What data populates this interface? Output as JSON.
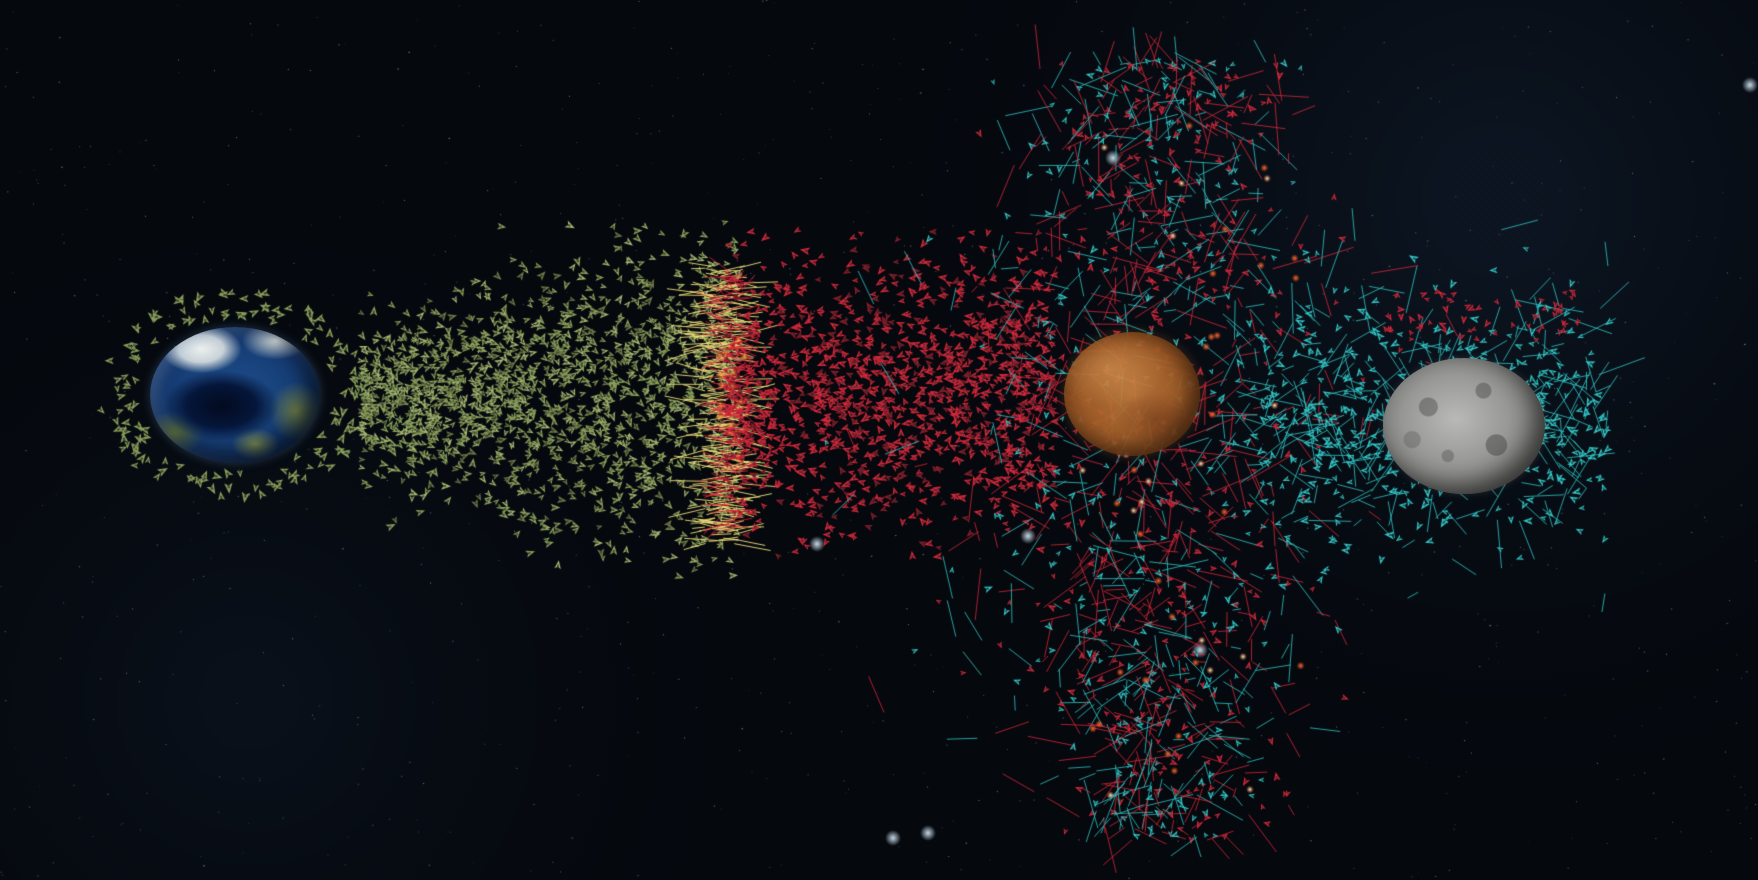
{
  "scene": {
    "type": "space-battle-simulation",
    "background_color": "#05080d",
    "planets": [
      {
        "id": "earth",
        "name": "earth",
        "colors": [
          "#1e4f8c",
          "#0f2a55",
          "#e8ecea",
          "#6d7c46"
        ]
      },
      {
        "id": "mars",
        "name": "mars",
        "colors": [
          "#c27a3c",
          "#7a4219"
        ]
      },
      {
        "id": "moon",
        "name": "moon",
        "colors": [
          "#b9b9b7",
          "#6b6b69"
        ]
      }
    ],
    "fleets": [
      {
        "id": "fleet-olive",
        "color": "#8aa05a"
      },
      {
        "id": "fleet-red",
        "color": "#d8263a"
      },
      {
        "id": "fleet-cyan",
        "color": "#2ec8c8"
      }
    ],
    "effects": {
      "laser_color": "#f3e27a",
      "explosion_color": "#ff6a2a",
      "flash_color": "#e9ffd0"
    }
  }
}
